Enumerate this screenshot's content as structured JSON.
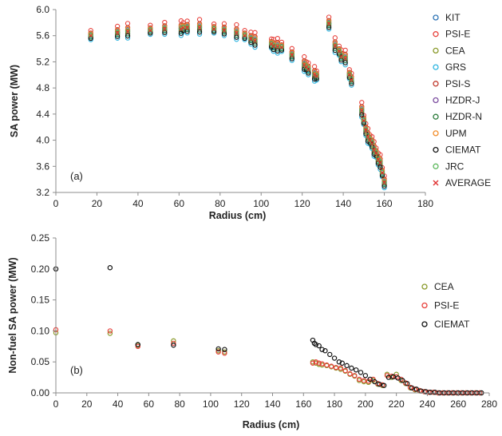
{
  "chart_data": [
    {
      "type": "scatter",
      "panel_label": "(a)",
      "xlabel": "Radius (cm)",
      "ylabel": "SA power (MW)",
      "xlim": [
        0,
        180
      ],
      "ylim": [
        3.2,
        6.0
      ],
      "xticks": [
        0,
        20,
        40,
        60,
        80,
        100,
        120,
        140,
        160,
        180
      ],
      "yticks": [
        3.2,
        3.6,
        4.0,
        4.4,
        4.8,
        5.2,
        5.6,
        6.0
      ],
      "ytick_labels": [
        "3.2",
        "3.6",
        "4.0",
        "4.4",
        "4.8",
        "5.2",
        "5.6",
        "6.0"
      ],
      "grid": false,
      "legend_position": "right",
      "series": [
        {
          "name": "KIT",
          "color": "#2e74b5",
          "marker": "circle",
          "offset": 0.0
        },
        {
          "name": "PSI-E",
          "color": "#e8413c",
          "marker": "circle",
          "offset": 0.08
        },
        {
          "name": "CEA",
          "color": "#8a9a2b",
          "marker": "circle",
          "offset": 0.0
        },
        {
          "name": "GRS",
          "color": "#2bb4e0",
          "marker": "circle",
          "offset": -0.06
        },
        {
          "name": "PSI-S",
          "color": "#c0392b",
          "marker": "circle",
          "offset": 0.04
        },
        {
          "name": "HZDR-J",
          "color": "#7d4fa0",
          "marker": "circle",
          "offset": 0.02
        },
        {
          "name": "HZDR-N",
          "color": "#2a7a3a",
          "marker": "circle",
          "offset": -0.02
        },
        {
          "name": "UPM",
          "color": "#f28c28",
          "marker": "circle",
          "offset": 0.03
        },
        {
          "name": "CIEMAT",
          "color": "#111111",
          "marker": "circle",
          "offset": -0.04
        },
        {
          "name": "JRC",
          "color": "#5cb85c",
          "marker": "circle",
          "offset": 0.01
        },
        {
          "name": "AVERAGE",
          "color": "#e03030",
          "marker": "x",
          "offset": 0.0
        }
      ],
      "average": {
        "x": [
          17,
          30,
          35,
          46,
          53,
          61,
          62,
          64,
          70,
          77,
          82,
          88,
          92,
          95,
          97,
          105,
          106,
          108,
          110,
          115,
          121,
          122,
          123,
          126,
          127,
          133,
          136,
          138,
          139,
          141,
          143,
          144,
          149,
          150,
          151,
          152,
          153,
          154,
          155,
          156,
          157,
          158,
          159,
          160
        ],
        "y": [
          5.6,
          5.64,
          5.66,
          5.68,
          5.7,
          5.7,
          5.72,
          5.72,
          5.72,
          5.7,
          5.68,
          5.64,
          5.6,
          5.55,
          5.52,
          5.47,
          5.44,
          5.43,
          5.42,
          5.3,
          5.15,
          5.12,
          5.08,
          5.0,
          4.98,
          5.78,
          5.44,
          5.36,
          5.28,
          5.25,
          5.0,
          4.92,
          4.45,
          4.3,
          4.15,
          4.05,
          4.0,
          3.95,
          3.85,
          3.8,
          3.7,
          3.65,
          3.5,
          3.35
        ]
      }
    },
    {
      "type": "scatter",
      "panel_label": "(b)",
      "xlabel": "Radius (cm)",
      "ylabel": "Non-fuel SA power (MW)",
      "xlim": [
        0,
        280
      ],
      "ylim": [
        0,
        0.25
      ],
      "xticks": [
        0,
        20,
        40,
        60,
        80,
        100,
        120,
        140,
        160,
        180,
        200,
        220,
        240,
        260,
        280
      ],
      "yticks": [
        0,
        0.05,
        0.1,
        0.15,
        0.2,
        0.25
      ],
      "ytick_labels": [
        "0.00",
        "0.05",
        "0.10",
        "0.15",
        "0.20",
        "0.25"
      ],
      "grid": false,
      "legend_position": "right",
      "series": [
        {
          "name": "CEA",
          "color": "#8a9a2b",
          "x": [
            0,
            35,
            53,
            76,
            105,
            109,
            166,
            168,
            170,
            172,
            175,
            178,
            181,
            184,
            187,
            190,
            193,
            196,
            199,
            202,
            205,
            208,
            211,
            214,
            217,
            220,
            223,
            226,
            229,
            232,
            235,
            238,
            241,
            244,
            247,
            250,
            253,
            256,
            259,
            262,
            265,
            268,
            271,
            274
          ],
          "y": [
            0.097,
            0.096,
            0.077,
            0.084,
            0.068,
            0.066,
            0.05,
            0.048,
            0.046,
            0.045,
            0.044,
            0.042,
            0.04,
            0.038,
            0.035,
            0.03,
            0.027,
            0.02,
            0.018,
            0.017,
            0.02,
            0.014,
            0.012,
            0.03,
            0.025,
            0.03,
            0.02,
            0.015,
            0.008,
            0.005,
            0.003,
            0.002,
            0.001,
            0.001,
            0.0,
            0.0,
            0.0,
            0.0,
            0.0,
            0.0,
            0.0,
            0.0,
            0.0,
            0.0
          ]
        },
        {
          "name": "PSI-E",
          "color": "#e8413c",
          "x": [
            0,
            35,
            53,
            76,
            105,
            109,
            166,
            168,
            170,
            172,
            175,
            178,
            181,
            184,
            187,
            190,
            193,
            196,
            199,
            202,
            205,
            208,
            211,
            214,
            217,
            220,
            223,
            226,
            229,
            232,
            235,
            238,
            241,
            244,
            247,
            250,
            253,
            256,
            259,
            262,
            265,
            268,
            271,
            274
          ],
          "y": [
            0.102,
            0.1,
            0.075,
            0.08,
            0.066,
            0.064,
            0.048,
            0.05,
            0.048,
            0.047,
            0.045,
            0.043,
            0.041,
            0.04,
            0.036,
            0.031,
            0.028,
            0.022,
            0.02,
            0.019,
            0.022,
            0.015,
            0.013,
            0.028,
            0.027,
            0.026,
            0.022,
            0.016,
            0.009,
            0.006,
            0.004,
            0.002,
            0.001,
            0.001,
            0.0,
            0.0,
            0.0,
            0.0,
            0.0,
            0.0,
            0.0,
            0.0,
            0.0,
            0.0
          ]
        },
        {
          "name": "CIEMAT",
          "color": "#111111",
          "x": [
            0,
            35,
            53,
            76,
            105,
            109,
            166,
            167,
            168,
            170,
            172,
            174,
            177,
            180,
            183,
            185,
            188,
            191,
            194,
            197,
            200,
            203,
            206,
            209,
            212,
            215,
            218,
            221,
            224,
            227,
            230,
            233,
            236,
            239,
            242,
            245,
            248,
            251,
            254,
            257,
            260,
            263,
            266,
            269,
            272,
            275
          ],
          "y": [
            0.2,
            0.202,
            0.078,
            0.077,
            0.071,
            0.07,
            0.085,
            0.08,
            0.078,
            0.076,
            0.07,
            0.068,
            0.062,
            0.056,
            0.05,
            0.048,
            0.044,
            0.04,
            0.037,
            0.033,
            0.028,
            0.022,
            0.018,
            0.014,
            0.012,
            0.025,
            0.026,
            0.024,
            0.02,
            0.015,
            0.008,
            0.006,
            0.003,
            0.002,
            0.001,
            0.001,
            0.0,
            0.0,
            0.0,
            0.0,
            0.0,
            0.0,
            0.0,
            0.0,
            0.0,
            0.0
          ]
        }
      ]
    }
  ]
}
